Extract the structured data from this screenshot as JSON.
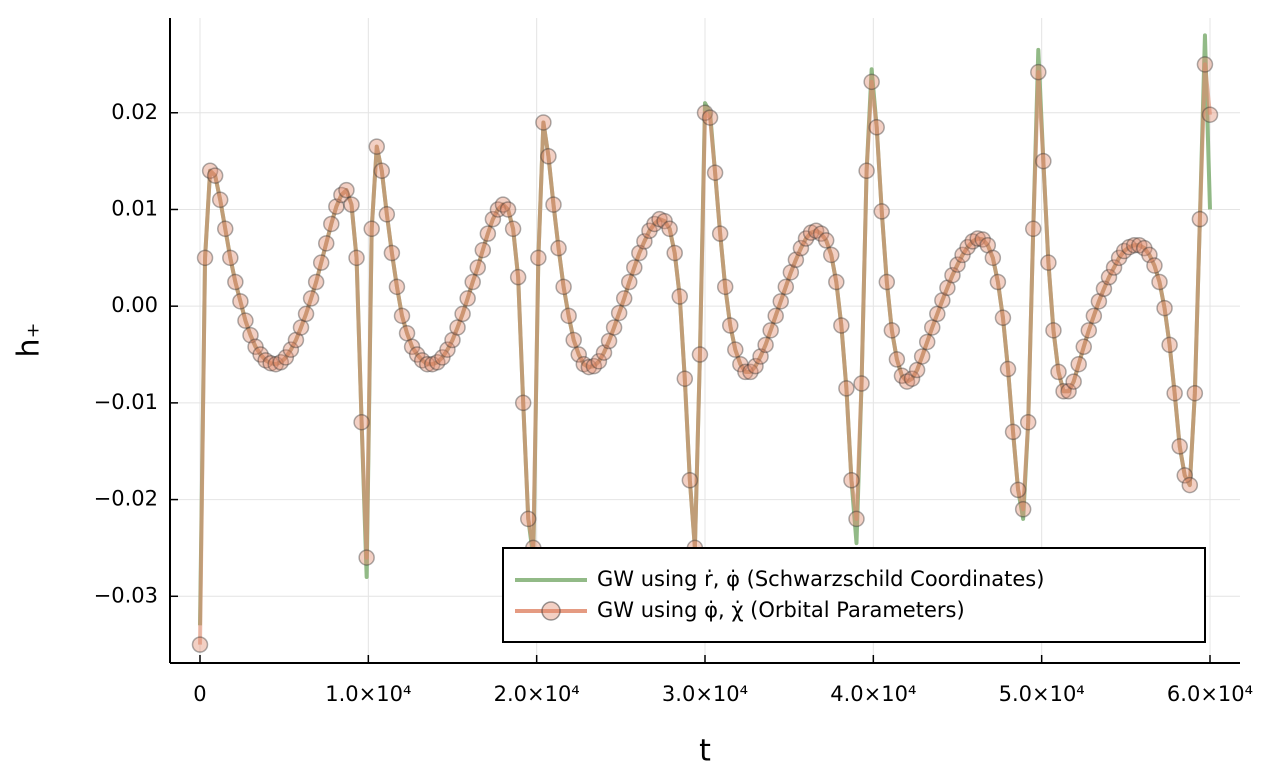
{
  "chart_data": {
    "type": "line",
    "xlabel": "t",
    "ylabel": "h₊",
    "xlim": [
      -1782,
      61782
    ],
    "ylim": [
      -0.0369,
      0.0298
    ],
    "xticks": [
      0,
      {
        "value": 10000,
        "label": "1.0×10⁴"
      },
      {
        "value": 20000,
        "label": "2.0×10⁴"
      },
      {
        "value": 30000,
        "label": "3.0×10⁴"
      },
      {
        "value": 40000,
        "label": "4.0×10⁴"
      },
      {
        "value": 50000,
        "label": "5.0×10⁴"
      },
      {
        "value": 60000,
        "label": "6.0×10⁴"
      }
    ],
    "yticks": [
      {
        "value": -0.03,
        "label": "−0.03"
      },
      {
        "value": -0.02,
        "label": "−0.02"
      },
      {
        "value": -0.01,
        "label": "−0.01"
      },
      {
        "value": 0,
        "label": "0.00"
      },
      0.01,
      0.02
    ],
    "grid": true,
    "legend": "bottom right",
    "x": [
      0,
      300,
      600,
      900,
      1200,
      1500,
      1800,
      2100,
      2400,
      2700,
      3000,
      3300,
      3600,
      3900,
      4200,
      4500,
      4800,
      5100,
      5400,
      5700,
      6000,
      6300,
      6600,
      6900,
      7200,
      7500,
      7800,
      8100,
      8400,
      8700,
      9000,
      9300,
      9600,
      9900,
      10200,
      10500,
      10800,
      11100,
      11400,
      11700,
      12000,
      12300,
      12600,
      12900,
      13200,
      13500,
      13800,
      14100,
      14400,
      14700,
      15000,
      15300,
      15600,
      15900,
      16200,
      16500,
      16800,
      17100,
      17400,
      17700,
      18000,
      18300,
      18600,
      18900,
      19200,
      19500,
      19800,
      20100,
      20400,
      20700,
      21000,
      21300,
      21600,
      21900,
      22200,
      22500,
      22800,
      23100,
      23400,
      23700,
      24000,
      24300,
      24600,
      24900,
      25200,
      25500,
      25800,
      26100,
      26400,
      26700,
      27000,
      27300,
      27600,
      27900,
      28200,
      28500,
      28800,
      29100,
      29400,
      29700,
      30000,
      30300,
      30600,
      30900,
      31200,
      31500,
      31800,
      32100,
      32400,
      32700,
      33000,
      33300,
      33600,
      33900,
      34200,
      34500,
      34800,
      35100,
      35400,
      35700,
      36000,
      36300,
      36600,
      36900,
      37200,
      37500,
      37800,
      38100,
      38400,
      38700,
      39000,
      39300,
      39600,
      39900,
      40200,
      40500,
      40800,
      41100,
      41400,
      41700,
      42000,
      42300,
      42600,
      42900,
      43200,
      43500,
      43800,
      44100,
      44400,
      44700,
      45000,
      45300,
      45600,
      45900,
      46200,
      46500,
      46800,
      47100,
      47400,
      47700,
      48000,
      48300,
      48600,
      48900,
      49200,
      49500,
      49800,
      50100,
      50400,
      50700,
      51000,
      51300,
      51600,
      51900,
      52200,
      52500,
      52800,
      53100,
      53400,
      53700,
      54000,
      54300,
      54600,
      54900,
      55200,
      55500,
      55800,
      56100,
      56400,
      56700,
      57000,
      57300,
      57600,
      57900,
      58200,
      58500,
      58800,
      59100,
      59400,
      59700,
      60000
    ],
    "series": [
      {
        "name": "GW using ṙ, φ̇ (Schwarzschild Coordinates)",
        "color": "#7fae72",
        "values": [
          -0.033,
          0.005,
          0.014,
          0.0135,
          0.011,
          0.008,
          0.005,
          0.0025,
          0.0005,
          -0.0015,
          -0.003,
          -0.0042,
          -0.005,
          -0.0056,
          -0.0059,
          -0.006,
          -0.0058,
          -0.0053,
          -0.0045,
          -0.0035,
          -0.0022,
          -0.0008,
          0.0008,
          0.0025,
          0.0045,
          0.0065,
          0.0085,
          0.0103,
          0.0115,
          0.012,
          0.0105,
          0.005,
          -0.012,
          -0.028,
          0.008,
          0.0165,
          0.014,
          0.0095,
          0.0055,
          0.002,
          -0.001,
          -0.0028,
          -0.0042,
          -0.005,
          -0.0056,
          -0.006,
          -0.006,
          -0.0058,
          -0.0053,
          -0.0045,
          -0.0035,
          -0.0022,
          -0.0008,
          0.0008,
          0.0025,
          0.004,
          0.0058,
          0.0075,
          0.009,
          0.01,
          0.0105,
          0.01,
          0.008,
          0.003,
          -0.01,
          -0.022,
          -0.026,
          0.005,
          0.019,
          0.0155,
          0.0105,
          0.006,
          0.002,
          -0.001,
          -0.0035,
          -0.005,
          -0.006,
          -0.0063,
          -0.0062,
          -0.0057,
          -0.0048,
          -0.0036,
          -0.0022,
          -0.0007,
          0.0008,
          0.0025,
          0.004,
          0.0055,
          0.0067,
          0.0078,
          0.0085,
          0.009,
          0.0088,
          0.008,
          0.0055,
          0.001,
          -0.0075,
          -0.018,
          -0.025,
          -0.005,
          0.021,
          0.02,
          0.0138,
          0.0075,
          0.002,
          -0.002,
          -0.0045,
          -0.006,
          -0.0068,
          -0.0068,
          -0.0062,
          -0.0052,
          -0.004,
          -0.0025,
          -0.001,
          0.0005,
          0.002,
          0.0035,
          0.0048,
          0.006,
          0.007,
          0.0076,
          0.0078,
          0.0075,
          0.0068,
          0.0053,
          0.0025,
          -0.002,
          -0.0085,
          -0.018,
          -0.0245,
          -0.008,
          0.014,
          0.0245,
          0.0185,
          0.0098,
          0.0025,
          -0.0025,
          -0.0055,
          -0.0072,
          -0.0078,
          -0.0075,
          -0.0066,
          -0.0052,
          -0.0037,
          -0.0022,
          -0.0008,
          0.0006,
          0.0019,
          0.0032,
          0.0043,
          0.0053,
          0.0061,
          0.0067,
          0.007,
          0.0069,
          0.0063,
          0.005,
          0.0025,
          -0.0012,
          -0.0065,
          -0.013,
          -0.019,
          -0.022,
          -0.012,
          0.008,
          0.0265,
          0.015,
          0.0045,
          -0.0025,
          -0.0068,
          -0.0088,
          -0.0088,
          -0.0078,
          -0.006,
          -0.0042,
          -0.0025,
          -0.001,
          0.0005,
          0.0018,
          0.003,
          0.004,
          0.005,
          0.0057,
          0.0061,
          0.0063,
          0.0063,
          0.006,
          0.0053,
          0.0042,
          0.0025,
          -0.0002,
          -0.004,
          -0.009,
          -0.0145,
          -0.0175,
          -0.0185,
          -0.009,
          0.009,
          0.028,
          0.01
        ]
      },
      {
        "name": "GW using φ̇, χ̇ (Orbital Parameters)",
        "color": "#e08a6c",
        "marker": "circle",
        "values": [
          -0.035,
          0.005,
          0.014,
          0.0135,
          0.011,
          0.008,
          0.005,
          0.0025,
          0.0005,
          -0.0015,
          -0.003,
          -0.0042,
          -0.005,
          -0.0056,
          -0.0059,
          -0.006,
          -0.0058,
          -0.0053,
          -0.0045,
          -0.0035,
          -0.0022,
          -0.0008,
          0.0008,
          0.0025,
          0.0045,
          0.0065,
          0.0085,
          0.0103,
          0.0115,
          0.012,
          0.0105,
          0.005,
          -0.012,
          -0.026,
          0.008,
          0.0165,
          0.014,
          0.0095,
          0.0055,
          0.002,
          -0.001,
          -0.0028,
          -0.0042,
          -0.005,
          -0.0056,
          -0.006,
          -0.006,
          -0.0058,
          -0.0053,
          -0.0045,
          -0.0035,
          -0.0022,
          -0.0008,
          0.0008,
          0.0025,
          0.004,
          0.0058,
          0.0075,
          0.009,
          0.01,
          0.0105,
          0.01,
          0.008,
          0.003,
          -0.01,
          -0.022,
          -0.025,
          0.005,
          0.019,
          0.0155,
          0.0105,
          0.006,
          0.002,
          -0.001,
          -0.0035,
          -0.005,
          -0.006,
          -0.0063,
          -0.0062,
          -0.0057,
          -0.0048,
          -0.0036,
          -0.0022,
          -0.0007,
          0.0008,
          0.0025,
          0.004,
          0.0055,
          0.0067,
          0.0078,
          0.0085,
          0.009,
          0.0088,
          0.008,
          0.0055,
          0.001,
          -0.0075,
          -0.018,
          -0.025,
          -0.005,
          0.02,
          0.0195,
          0.0138,
          0.0075,
          0.002,
          -0.002,
          -0.0045,
          -0.006,
          -0.0068,
          -0.0068,
          -0.0062,
          -0.0052,
          -0.004,
          -0.0025,
          -0.001,
          0.0005,
          0.002,
          0.0035,
          0.0048,
          0.006,
          0.007,
          0.0076,
          0.0078,
          0.0075,
          0.0068,
          0.0053,
          0.0025,
          -0.002,
          -0.0085,
          -0.018,
          -0.022,
          -0.008,
          0.014,
          0.0232,
          0.0185,
          0.0098,
          0.0025,
          -0.0025,
          -0.0055,
          -0.0072,
          -0.0078,
          -0.0075,
          -0.0066,
          -0.0052,
          -0.0037,
          -0.0022,
          -0.0008,
          0.0006,
          0.0019,
          0.0032,
          0.0043,
          0.0053,
          0.0061,
          0.0067,
          0.007,
          0.0069,
          0.0063,
          0.005,
          0.0025,
          -0.0012,
          -0.0065,
          -0.013,
          -0.019,
          -0.021,
          -0.012,
          0.008,
          0.0242,
          0.015,
          0.0045,
          -0.0025,
          -0.0068,
          -0.0088,
          -0.0088,
          -0.0078,
          -0.006,
          -0.0042,
          -0.0025,
          -0.001,
          0.0005,
          0.0018,
          0.003,
          0.004,
          0.005,
          0.0057,
          0.0061,
          0.0063,
          0.0063,
          0.006,
          0.0053,
          0.0042,
          0.0025,
          -0.0002,
          -0.004,
          -0.009,
          -0.0145,
          -0.0175,
          -0.0185,
          -0.009,
          0.009,
          0.025,
          0.0198
        ]
      }
    ]
  }
}
